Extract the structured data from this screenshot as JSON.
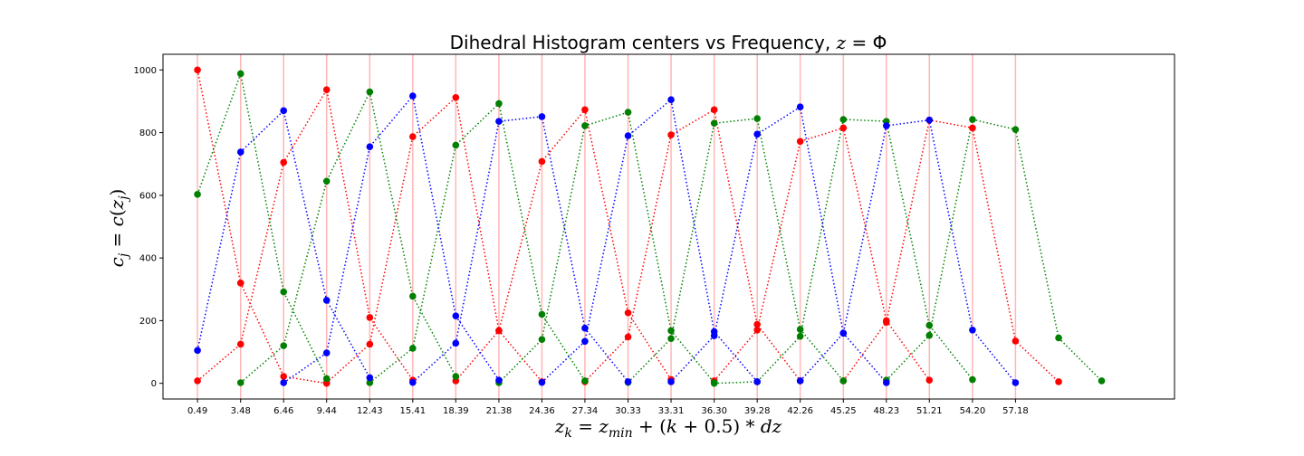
{
  "chart_data": {
    "type": "line",
    "title": "Dihedral Histogram centers vs Frequency, z = Φ",
    "xlabel": "z_k = z_min + (k + 0.5) * dz",
    "ylabel": "c_j = c(z_j)",
    "x_ticks": [
      "0.49",
      "3.48",
      "6.46",
      "9.44",
      "12.43",
      "15.41",
      "18.39",
      "21.38",
      "24.36",
      "27.34",
      "30.33",
      "33.31",
      "36.30",
      "39.28",
      "42.26",
      "45.25",
      "48.23",
      "51.21",
      "54.20",
      "57.18"
    ],
    "x_centers": [
      0.49,
      3.48,
      6.46,
      9.44,
      12.43,
      15.41,
      18.39,
      21.38,
      24.36,
      27.34,
      30.33,
      33.31,
      36.3,
      39.28,
      42.26,
      45.25,
      48.23,
      51.21,
      54.2,
      57.18
    ],
    "xlim": [
      -1.9,
      68.2
    ],
    "ylim": [
      -50,
      1050
    ],
    "y_ticks": [
      0,
      200,
      400,
      600,
      800,
      1000
    ],
    "grid": false,
    "vertical_lines_color": "#ffb6b6",
    "series": [
      {
        "color": "#ff0000",
        "points": [
          [
            0.49,
            1000
          ],
          [
            3.48,
            320
          ],
          [
            6.46,
            22
          ],
          [
            9.44,
            0
          ]
        ]
      },
      {
        "color": "#ff0000",
        "points": [
          [
            0.49,
            8
          ],
          [
            3.48,
            125
          ],
          [
            6.46,
            705
          ],
          [
            9.44,
            937
          ],
          [
            12.43,
            210
          ],
          [
            15.41,
            10
          ]
        ]
      },
      {
        "color": "#ff0000",
        "points": [
          [
            9.44,
            2
          ],
          [
            12.43,
            125
          ],
          [
            15.41,
            787
          ],
          [
            18.39,
            912
          ],
          [
            21.38,
            168
          ],
          [
            24.36,
            5
          ]
        ]
      },
      {
        "color": "#ff0000",
        "points": [
          [
            18.39,
            8
          ],
          [
            21.38,
            168
          ],
          [
            24.36,
            708
          ],
          [
            27.34,
            873
          ],
          [
            30.33,
            225
          ],
          [
            33.31,
            12
          ]
        ]
      },
      {
        "color": "#ff0000",
        "points": [
          [
            27.34,
            5
          ],
          [
            30.33,
            148
          ],
          [
            33.31,
            793
          ],
          [
            36.3,
            873
          ],
          [
            39.28,
            188
          ],
          [
            42.26,
            8
          ]
        ]
      },
      {
        "color": "#ff0000",
        "points": [
          [
            36.3,
            8
          ],
          [
            39.28,
            170
          ],
          [
            42.26,
            772
          ],
          [
            45.25,
            815
          ],
          [
            48.23,
            200
          ],
          [
            51.21,
            10
          ]
        ]
      },
      {
        "color": "#ff0000",
        "points": [
          [
            45.25,
            8
          ],
          [
            48.23,
            195
          ],
          [
            51.21,
            840
          ],
          [
            54.2,
            815
          ],
          [
            57.18,
            135
          ],
          [
            60.17,
            5
          ]
        ]
      },
      {
        "color": "#008000",
        "points": [
          [
            0.49,
            603
          ],
          [
            3.48,
            988
          ],
          [
            6.46,
            292
          ],
          [
            9.44,
            15
          ]
        ]
      },
      {
        "color": "#008000",
        "points": [
          [
            3.48,
            2
          ],
          [
            6.46,
            120
          ],
          [
            9.44,
            645
          ],
          [
            12.43,
            930
          ],
          [
            15.41,
            278
          ],
          [
            18.39,
            22
          ]
        ]
      },
      {
        "color": "#008000",
        "points": [
          [
            12.43,
            2
          ],
          [
            15.41,
            112
          ],
          [
            18.39,
            760
          ],
          [
            21.38,
            893
          ],
          [
            24.36,
            220
          ],
          [
            27.34,
            8
          ]
        ]
      },
      {
        "color": "#008000",
        "points": [
          [
            21.38,
            2
          ],
          [
            24.36,
            140
          ],
          [
            27.34,
            822
          ],
          [
            30.33,
            865
          ],
          [
            33.31,
            168
          ],
          [
            36.3,
            2
          ]
        ]
      },
      {
        "color": "#008000",
        "points": [
          [
            30.33,
            3
          ],
          [
            33.31,
            143
          ],
          [
            36.3,
            830
          ],
          [
            39.28,
            845
          ],
          [
            42.26,
            172
          ],
          [
            45.25,
            8
          ]
        ]
      },
      {
        "color": "#008000",
        "points": [
          [
            36.3,
            0
          ],
          [
            39.28,
            5
          ],
          [
            42.26,
            150
          ],
          [
            45.25,
            842
          ],
          [
            48.23,
            836
          ],
          [
            51.21,
            185
          ],
          [
            54.2,
            12
          ]
        ]
      },
      {
        "color": "#008000",
        "points": [
          [
            48.23,
            10
          ],
          [
            51.21,
            153
          ],
          [
            54.2,
            842
          ],
          [
            57.18,
            810
          ],
          [
            60.17,
            145
          ],
          [
            63.15,
            8
          ]
        ]
      },
      {
        "color": "#0000ff",
        "points": [
          [
            0.49,
            105
          ],
          [
            3.48,
            738
          ],
          [
            6.46,
            870
          ],
          [
            9.44,
            265
          ],
          [
            12.43,
            18
          ]
        ]
      },
      {
        "color": "#0000ff",
        "points": [
          [
            6.46,
            2
          ],
          [
            9.44,
            97
          ],
          [
            12.43,
            755
          ],
          [
            15.41,
            917
          ],
          [
            18.39,
            215
          ],
          [
            21.38,
            10
          ]
        ]
      },
      {
        "color": "#0000ff",
        "points": [
          [
            15.41,
            3
          ],
          [
            18.39,
            128
          ],
          [
            21.38,
            836
          ],
          [
            24.36,
            851
          ],
          [
            27.34,
            176
          ],
          [
            30.33,
            5
          ]
        ]
      },
      {
        "color": "#0000ff",
        "points": [
          [
            24.36,
            3
          ],
          [
            27.34,
            134
          ],
          [
            30.33,
            790
          ],
          [
            33.31,
            905
          ],
          [
            36.3,
            165
          ],
          [
            39.28,
            5
          ]
        ]
      },
      {
        "color": "#0000ff",
        "points": [
          [
            33.31,
            5
          ],
          [
            36.3,
            152
          ],
          [
            39.28,
            795
          ],
          [
            42.26,
            882
          ],
          [
            45.25,
            160
          ],
          [
            48.23,
            2
          ]
        ]
      },
      {
        "color": "#0000ff",
        "points": [
          [
            42.26,
            8
          ],
          [
            45.25,
            160
          ],
          [
            48.23,
            822
          ],
          [
            51.21,
            840
          ],
          [
            54.2,
            170
          ],
          [
            57.18,
            2
          ]
        ]
      }
    ]
  }
}
